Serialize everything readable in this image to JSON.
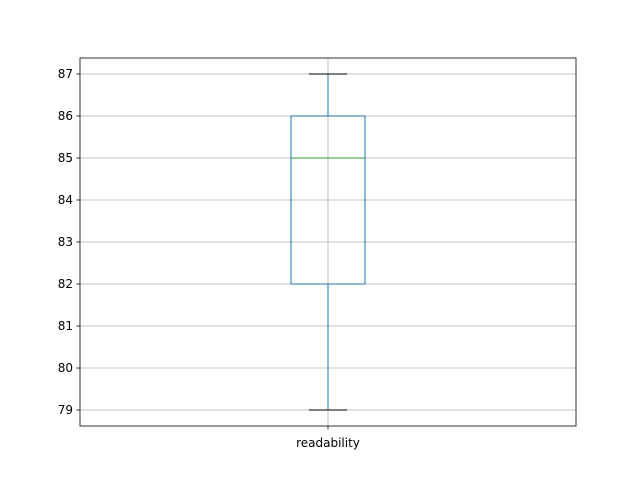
{
  "chart_data": {
    "type": "box",
    "title": "",
    "xlabel": "",
    "ylabel": "",
    "categories": [
      "readability"
    ],
    "boxes": [
      {
        "label": "readability",
        "whisker_low": 79,
        "q1": 82,
        "median": 85,
        "q3": 86,
        "whisker_high": 87,
        "outliers": []
      }
    ],
    "ylim": [
      78.62,
      87.38
    ],
    "yticks": [
      79,
      80,
      81,
      82,
      83,
      84,
      85,
      86,
      87
    ],
    "grid": true,
    "colors": {
      "box": "#1f77b4",
      "median": "#2ca02c",
      "caps": "#000000",
      "grid": "#b0b0b0"
    }
  }
}
